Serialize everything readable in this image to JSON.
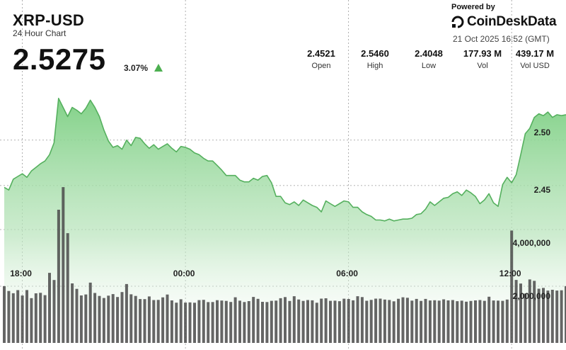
{
  "header": {
    "ticker": "XRP-USD",
    "subtitle": "24 Hour Chart",
    "price": "2.5275",
    "change_pct": "3.07%",
    "change_direction": "up"
  },
  "stats": [
    {
      "value": "2.4521",
      "label": "Open"
    },
    {
      "value": "2.5460",
      "label": "High"
    },
    {
      "value": "2.4048",
      "label": "Low"
    },
    {
      "value": "177.93 M",
      "label": "Vol"
    },
    {
      "value": "439.17 M",
      "label": "Vol USD"
    }
  ],
  "branding": {
    "powered_by": "Powered by",
    "brand": "CoinDeskData",
    "timestamp": "21 Oct 2025 16:52 (GMT)"
  },
  "colors": {
    "line": "#55b05e",
    "area_top": "#7ccf82",
    "bar": "#4a4a4a",
    "up_arrow": "#4caf50"
  },
  "chart_data": {
    "type": "line",
    "price_axis": {
      "ticks": [
        "2.50",
        "2.45"
      ],
      "ylim": [
        2.389,
        2.5685
      ]
    },
    "volume_axis": {
      "ticks": [
        "4,000,000",
        "2,000,000"
      ],
      "ylim": [
        0,
        7500000
      ]
    },
    "x_ticks": [
      "18:00",
      "00:00",
      "06:00",
      "12:00"
    ],
    "grid": true,
    "series": [
      {
        "type": "line",
        "values": [
          2.448,
          2.445,
          2.457,
          2.46,
          2.463,
          2.459,
          2.466,
          2.47,
          2.474,
          2.477,
          2.484,
          2.497,
          2.546,
          2.536,
          2.526,
          2.536,
          2.533,
          2.529,
          2.535,
          2.544,
          2.536,
          2.526,
          2.511,
          2.499,
          2.492,
          2.494,
          2.49,
          2.5,
          2.494,
          2.503,
          2.502,
          2.496,
          2.491,
          2.495,
          2.49,
          2.493,
          2.496,
          2.491,
          2.487,
          2.493,
          2.492,
          2.49,
          2.486,
          2.484,
          2.48,
          2.477,
          2.477,
          2.472,
          2.467,
          2.461,
          2.461,
          2.461,
          2.456,
          2.454,
          2.454,
          2.458,
          2.456,
          2.46,
          2.461,
          2.453,
          2.438,
          2.438,
          2.431,
          2.429,
          2.432,
          2.428,
          2.434,
          2.431,
          2.428,
          2.426,
          2.421,
          2.433,
          2.43,
          2.427,
          2.43,
          2.433,
          2.432,
          2.426,
          2.426,
          2.421,
          2.418,
          2.416,
          2.412,
          2.412,
          2.411,
          2.413,
          2.411,
          2.412,
          2.413,
          2.413,
          2.414,
          2.418,
          2.419,
          2.424,
          2.432,
          2.428,
          2.432,
          2.436,
          2.437,
          2.441,
          2.443,
          2.439,
          2.445,
          2.442,
          2.438,
          2.43,
          2.434,
          2.441,
          2.431,
          2.427,
          2.451,
          2.459,
          2.453,
          2.462,
          2.484,
          2.507,
          2.513,
          2.525,
          2.529,
          2.527,
          2.531,
          2.525,
          2.528,
          2.527,
          2.528
        ]
      },
      {
        "type": "bar",
        "name": "Volume",
        "values": [
          2002650,
          1833440,
          1753210,
          1863230,
          1672300,
          1864650,
          1581200,
          1750650,
          1767190,
          1684990,
          2471270,
          2219690,
          4700460,
          5497520,
          3873480,
          2100920,
          1906270,
          1675160,
          1708860,
          2128510,
          1763140,
          1657920,
          1584010,
          1667960,
          1722420,
          1618850,
          1795040,
          2076790,
          1715160,
          1656810,
          1547660,
          1545840,
          1639810,
          1513200,
          1516850,
          1608600,
          1707140,
          1499870,
          1419590,
          1540520,
          1421630,
          1430110,
          1417310,
          1510270,
          1520880,
          1440300,
          1442780,
          1508490,
          1495020,
          1483290,
          1444440,
          1610100,
          1490230,
          1441650,
          1474380,
          1621310,
          1554160,
          1449400,
          1442130,
          1485060,
          1493460,
          1576450,
          1617880,
          1480930,
          1648410,
          1533350,
          1481480,
          1511880,
          1503520,
          1417290,
          1563550,
          1574760,
          1485230,
          1489310,
          1473050,
          1559820,
          1549710,
          1501570,
          1646410,
          1616590,
          1488580,
          1518380,
          1562340,
          1562150,
          1529360,
          1516100,
          1466680,
          1558370,
          1611170,
          1592360,
          1491550,
          1551270,
          1481590,
          1552200,
          1498080,
          1505290,
          1492190,
          1538480,
          1500280,
          1513320,
          1471470,
          1490600,
          1455840,
          1479440,
          1500710,
          1513370,
          1484220,
          1630670,
          1496320,
          1492780,
          1483950,
          1531210,
          3964580,
          2221270,
          2094600,
          1743210,
          2239640,
          2190490,
          1912580,
          1938780,
          1848310,
          1874230,
          1846550,
          1857430,
          2004630
        ]
      }
    ]
  }
}
